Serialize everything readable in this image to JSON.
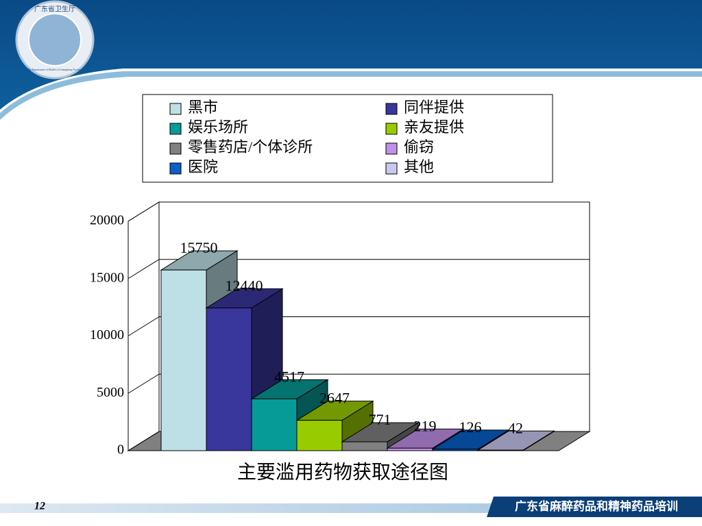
{
  "slide": {
    "page_number": "12",
    "footer": "广东省麻醉药品和精神药品培训",
    "logo_text": "广东省卫生厅",
    "logo_subtext": "The Department of Health of Guangdong Province"
  },
  "chart_data": {
    "type": "bar3d",
    "title": "主要滥用药物获取途径图",
    "series": [
      {
        "name": "黑市",
        "color": "#bde0e6",
        "values": [
          15750
        ]
      },
      {
        "name": "同伴提供",
        "color": "#39379c",
        "values": [
          12440
        ]
      },
      {
        "name": "娱乐场所",
        "color": "#079b97",
        "values": [
          4517
        ]
      },
      {
        "name": "亲友提供",
        "color": "#99cc00",
        "values": [
          2647
        ]
      },
      {
        "name": "零售药店/个体诊所",
        "color": "#808080",
        "values": [
          771
        ]
      },
      {
        "name": "偷窃",
        "color": "#c090e8",
        "values": [
          219
        ]
      },
      {
        "name": "医院",
        "color": "#0860c8",
        "values": [
          126
        ]
      },
      {
        "name": "其他",
        "color": "#c8c8f0",
        "values": [
          42
        ]
      }
    ],
    "ylim": [
      0,
      20000
    ],
    "yticks": [
      0,
      5000,
      10000,
      15000,
      20000
    ],
    "grid": true,
    "legend": "top"
  }
}
